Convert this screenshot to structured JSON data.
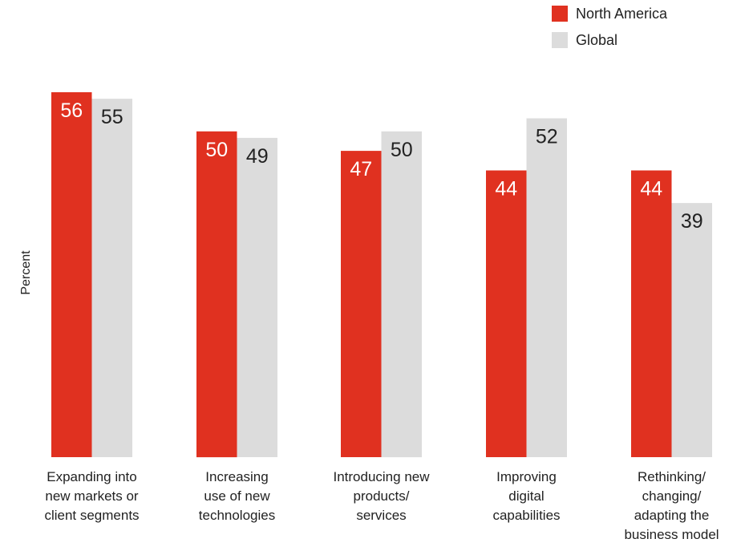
{
  "chart_data": {
    "type": "bar",
    "ylabel": "Percent",
    "categories": [
      [
        "Expanding into",
        "new markets or",
        "client segments"
      ],
      [
        "Increasing",
        "use of new",
        "technologies"
      ],
      [
        "Introducing new",
        "products/",
        "services"
      ],
      [
        "Improving",
        "digital",
        "capabilities"
      ],
      [
        "Rethinking/",
        "changing/",
        "adapting the",
        "business model"
      ]
    ],
    "series": [
      {
        "name": "North America",
        "color": "#e03120",
        "values": [
          56,
          50,
          47,
          44,
          44
        ]
      },
      {
        "name": "Global",
        "color": "#dcdcdc",
        "values": [
          55,
          49,
          50,
          52,
          39
        ]
      }
    ],
    "ylim": [
      0,
      56
    ],
    "grid": false,
    "legend_position": "top-right",
    "data_labels": true
  }
}
